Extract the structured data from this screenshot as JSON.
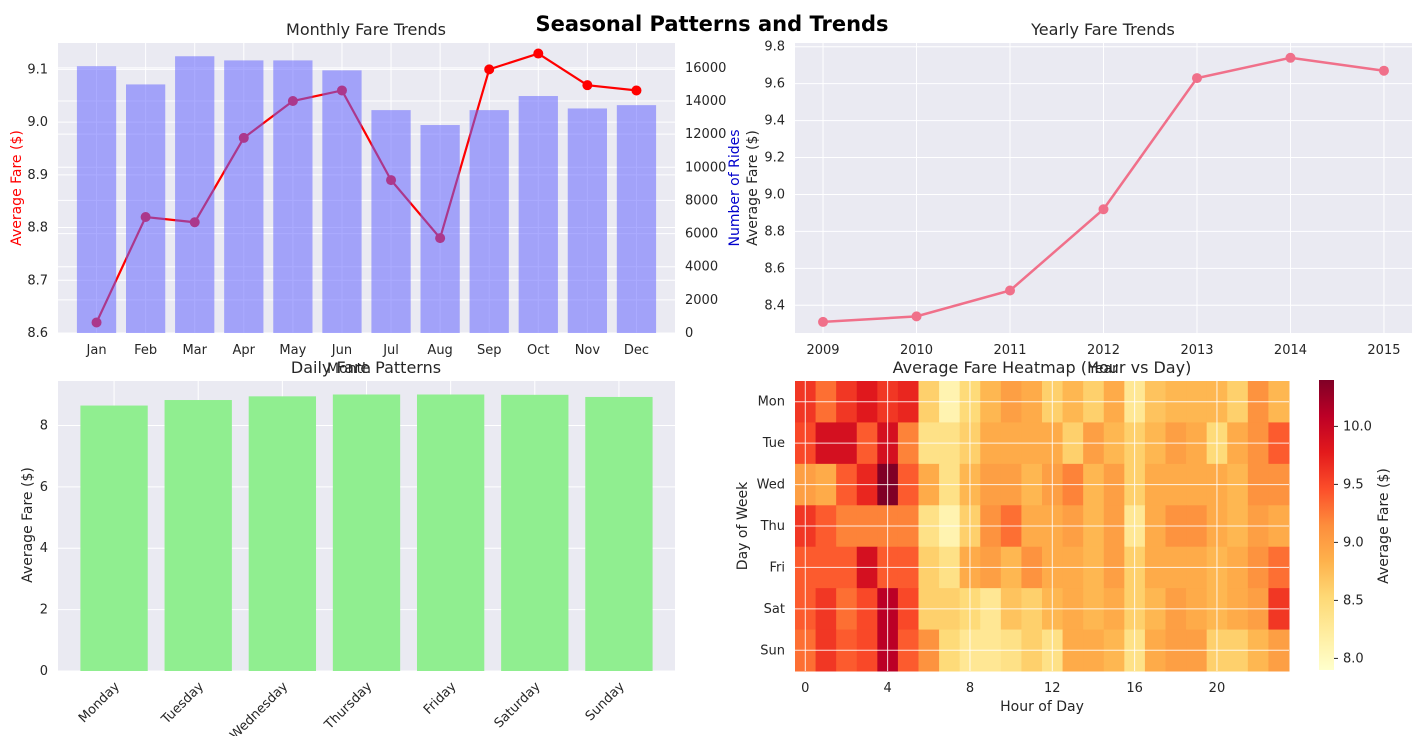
{
  "figure": {
    "title": "Seasonal Patterns and Trends"
  },
  "colors": {
    "panel_bg": "#eaeaf2",
    "grid": "#ffffff",
    "fare_line": "#ff0000",
    "rides_bar": "#a3a4f6",
    "daily_bar": "#90ee90",
    "yearly_line": "#f0708a"
  },
  "chart_data": [
    {
      "id": "monthly",
      "type": "bar+line",
      "title": "Monthly Fare Trends",
      "xlabel": "Month",
      "ylabel_left": "Average Fare ($)",
      "ylabel_right": "Number of Rides",
      "categories": [
        "Jan",
        "Feb",
        "Mar",
        "Apr",
        "May",
        "Jun",
        "Jul",
        "Aug",
        "Sep",
        "Oct",
        "Nov",
        "Dec"
      ],
      "series": [
        {
          "name": "Average Fare ($)",
          "axis": "left",
          "kind": "line",
          "values": [
            8.62,
            8.82,
            8.81,
            8.97,
            9.04,
            9.06,
            8.89,
            8.78,
            9.1,
            9.13,
            9.07,
            9.06
          ]
        },
        {
          "name": "Number of Rides",
          "axis": "right",
          "kind": "bar",
          "values": [
            16100,
            15000,
            16700,
            16450,
            16450,
            15850,
            13450,
            12550,
            13450,
            14300,
            13550,
            13750
          ]
        }
      ],
      "ylim_left": [
        8.6,
        9.15
      ],
      "yticks_left": [
        8.6,
        8.7,
        8.8,
        8.9,
        9.0,
        9.1
      ],
      "ytick_labels_left": [
        "8.6",
        "8.7",
        "8.8",
        "8.9",
        "9.0",
        "9.1"
      ],
      "ylim_right": [
        0,
        17500
      ],
      "yticks_right": [
        0,
        2000,
        4000,
        6000,
        8000,
        10000,
        12000,
        14000,
        16000
      ],
      "ytick_labels_right": [
        "0",
        "2000",
        "4000",
        "6000",
        "8000",
        "10000",
        "12000",
        "14000",
        "16000"
      ],
      "grid": true
    },
    {
      "id": "yearly",
      "type": "line",
      "title": "Yearly Fare Trends",
      "xlabel": "Year",
      "ylabel": "Average Fare ($)",
      "x": [
        2009,
        2010,
        2011,
        2012,
        2013,
        2014,
        2015
      ],
      "x_labels": [
        "2009",
        "2010",
        "2011",
        "2012",
        "2013",
        "2014",
        "2015"
      ],
      "values": [
        8.31,
        8.34,
        8.48,
        8.92,
        9.63,
        9.74,
        9.67
      ],
      "ylim": [
        8.25,
        9.82
      ],
      "yticks": [
        8.4,
        8.6,
        8.8,
        9.0,
        9.2,
        9.4,
        9.6,
        9.8
      ],
      "ytick_labels": [
        "8.4",
        "8.6",
        "8.8",
        "9.0",
        "9.2",
        "9.4",
        "9.6",
        "9.8"
      ],
      "grid": true
    },
    {
      "id": "daily",
      "type": "bar",
      "title": "Daily Fare Patterns",
      "ylabel": "Average Fare ($)",
      "categories": [
        "Monday",
        "Tuesday",
        "Wednesday",
        "Thursday",
        "Friday",
        "Saturday",
        "Sunday"
      ],
      "values": [
        8.65,
        8.83,
        8.95,
        9.01,
        9.01,
        9.0,
        8.93
      ],
      "ylim": [
        0,
        9.45
      ],
      "yticks": [
        0,
        2,
        4,
        6,
        8
      ],
      "ytick_labels": [
        "0",
        "2",
        "4",
        "6",
        "8"
      ],
      "grid": true
    },
    {
      "id": "heatmap",
      "type": "heatmap",
      "title": "Average Fare Heatmap (Hour vs Day)",
      "xlabel": "Hour of Day",
      "ylabel": "Day of Week",
      "rows": [
        "Mon",
        "Tue",
        "Wed",
        "Thu",
        "Fri",
        "Sat",
        "Sun"
      ],
      "xticks": [
        0,
        4,
        8,
        12,
        16,
        20
      ],
      "xtick_labels": [
        "0",
        "4",
        "8",
        "12",
        "16",
        "20"
      ],
      "colorbar_label": "Average Fare ($)",
      "colorbar_range": [
        7.9,
        10.4
      ],
      "colorbar_ticks": [
        8.0,
        8.5,
        9.0,
        9.5,
        10.0
      ],
      "colorbar_tick_labels": [
        "8.0",
        "8.5",
        "9.0",
        "9.5",
        "10.0"
      ],
      "values": [
        [
          9.6,
          9.3,
          9.6,
          9.8,
          9.6,
          9.7,
          8.6,
          8.1,
          8.5,
          8.8,
          9.0,
          8.9,
          8.6,
          8.8,
          8.6,
          8.9,
          8.3,
          8.7,
          8.8,
          8.8,
          8.8,
          8.6,
          9.1,
          8.8
        ],
        [
          9.5,
          9.9,
          9.9,
          9.4,
          9.9,
          9.2,
          8.4,
          8.4,
          8.6,
          8.9,
          8.9,
          8.9,
          8.9,
          8.6,
          9.0,
          8.8,
          8.6,
          8.8,
          9.0,
          8.9,
          8.5,
          8.9,
          9.1,
          9.4
        ],
        [
          9.0,
          8.9,
          9.4,
          9.7,
          10.4,
          9.4,
          8.9,
          8.4,
          8.8,
          9.0,
          9.0,
          8.8,
          9.0,
          9.2,
          8.8,
          9.0,
          8.6,
          8.9,
          8.9,
          8.9,
          8.9,
          8.8,
          9.1,
          9.1
        ],
        [
          9.6,
          9.4,
          9.2,
          9.2,
          9.2,
          9.2,
          8.4,
          8.1,
          8.6,
          9.1,
          9.3,
          8.9,
          8.9,
          9.0,
          8.8,
          9.0,
          8.3,
          8.9,
          9.1,
          9.1,
          8.9,
          8.8,
          9.0,
          8.9
        ],
        [
          9.4,
          9.4,
          9.4,
          9.9,
          9.4,
          9.4,
          8.6,
          8.4,
          8.9,
          9.0,
          8.8,
          9.1,
          8.9,
          8.9,
          8.8,
          9.0,
          8.6,
          8.9,
          8.9,
          8.9,
          8.8,
          8.9,
          9.1,
          9.3
        ],
        [
          9.4,
          9.6,
          9.3,
          9.5,
          10.1,
          9.5,
          8.6,
          8.6,
          8.5,
          8.3,
          8.7,
          8.6,
          8.8,
          8.9,
          8.8,
          8.9,
          8.6,
          8.8,
          9.0,
          8.9,
          8.8,
          8.9,
          9.0,
          9.6
        ],
        [
          9.3,
          9.6,
          9.4,
          9.5,
          10.1,
          9.4,
          9.1,
          8.5,
          8.3,
          8.3,
          8.4,
          8.6,
          8.4,
          8.9,
          8.9,
          8.8,
          8.4,
          8.9,
          9.0,
          9.0,
          8.6,
          8.6,
          8.8,
          9.0
        ]
      ]
    }
  ]
}
